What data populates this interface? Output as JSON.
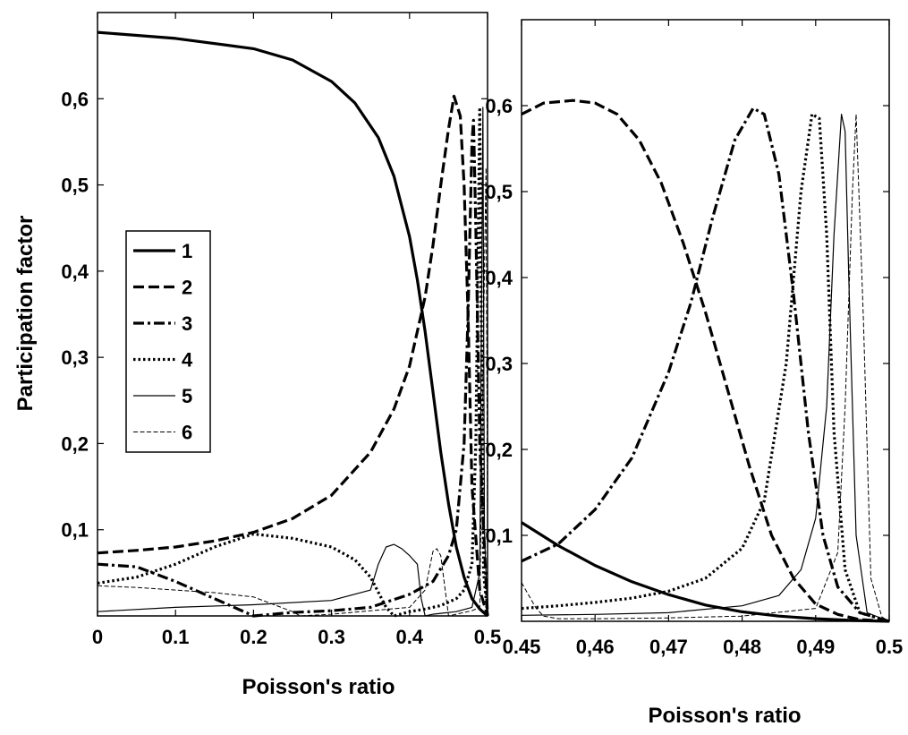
{
  "chart_data": [
    {
      "type": "line",
      "title": "",
      "xlabel": "Poisson's ratio",
      "ylabel": "Participation factor",
      "xlim": [
        0,
        0.5
      ],
      "ylim": [
        0,
        0.7
      ],
      "xticks": [
        0,
        0.1,
        0.2,
        0.3,
        0.4,
        0.5
      ],
      "xtick_labels": [
        "0",
        "0.1",
        "0.2",
        "0.3",
        "0.4",
        "0.5"
      ],
      "yticks": [
        0.1,
        0.2,
        0.3,
        0.4,
        0.5,
        0.6
      ],
      "ytick_labels": [
        "0,1",
        "0,2",
        "0,3",
        "0,4",
        "0,5",
        "0,6"
      ],
      "grid": false,
      "legend": "center-left",
      "series": [
        {
          "name": "1",
          "style": "solid-thick",
          "x": [
            0,
            0.1,
            0.2,
            0.25,
            0.3,
            0.33,
            0.36,
            0.38,
            0.4,
            0.41,
            0.42,
            0.43,
            0.44,
            0.45,
            0.46,
            0.47,
            0.48,
            0.49,
            0.5
          ],
          "y": [
            0.677,
            0.67,
            0.658,
            0.645,
            0.62,
            0.595,
            0.555,
            0.51,
            0.44,
            0.39,
            0.33,
            0.26,
            0.19,
            0.13,
            0.08,
            0.045,
            0.02,
            0.008,
            0.0
          ]
        },
        {
          "name": "2",
          "style": "dashed",
          "x": [
            0,
            0.05,
            0.1,
            0.15,
            0.2,
            0.25,
            0.3,
            0.35,
            0.38,
            0.4,
            0.42,
            0.43,
            0.44,
            0.45,
            0.457,
            0.465,
            0.47,
            0.475,
            0.48,
            0.49,
            0.5
          ],
          "y": [
            0.073,
            0.076,
            0.08,
            0.087,
            0.097,
            0.113,
            0.14,
            0.19,
            0.24,
            0.29,
            0.37,
            0.43,
            0.5,
            0.565,
            0.603,
            0.58,
            0.5,
            0.35,
            0.15,
            0.03,
            0.0
          ]
        },
        {
          "name": "3",
          "style": "dash-dot",
          "x": [
            0,
            0.05,
            0.1,
            0.15,
            0.2,
            0.25,
            0.3,
            0.35,
            0.4,
            0.43,
            0.45,
            0.46,
            0.47,
            0.475,
            0.48,
            0.482,
            0.485,
            0.49,
            0.5
          ],
          "y": [
            0.06,
            0.057,
            0.04,
            0.02,
            0.0,
            0.004,
            0.006,
            0.01,
            0.025,
            0.04,
            0.07,
            0.1,
            0.2,
            0.35,
            0.55,
            0.575,
            0.45,
            0.2,
            0.0
          ]
        },
        {
          "name": "4",
          "style": "dotted",
          "x": [
            0,
            0.05,
            0.1,
            0.15,
            0.2,
            0.25,
            0.3,
            0.33,
            0.35,
            0.37,
            0.38,
            0.4,
            0.42,
            0.44,
            0.46,
            0.47,
            0.48,
            0.485,
            0.49,
            0.492,
            0.495,
            0.5
          ],
          "y": [
            0.038,
            0.045,
            0.06,
            0.08,
            0.095,
            0.09,
            0.08,
            0.065,
            0.045,
            0.01,
            0.0,
            0.005,
            0.008,
            0.012,
            0.02,
            0.03,
            0.06,
            0.2,
            0.59,
            0.35,
            0.05,
            0.0
          ]
        },
        {
          "name": "5",
          "style": "solid-thin",
          "x": [
            0,
            0.1,
            0.2,
            0.3,
            0.35,
            0.36,
            0.37,
            0.38,
            0.39,
            0.4,
            0.41,
            0.415,
            0.42,
            0.43,
            0.44,
            0.46,
            0.48,
            0.49,
            0.494,
            0.496,
            0.5
          ],
          "y": [
            0.005,
            0.01,
            0.013,
            0.018,
            0.03,
            0.06,
            0.08,
            0.083,
            0.078,
            0.07,
            0.06,
            0.02,
            0.0,
            0.002,
            0.003,
            0.005,
            0.01,
            0.05,
            0.59,
            0.1,
            0.0
          ]
        },
        {
          "name": "6",
          "style": "dashed-thin",
          "x": [
            0,
            0.05,
            0.1,
            0.15,
            0.2,
            0.25,
            0.26,
            0.3,
            0.35,
            0.4,
            0.42,
            0.43,
            0.435,
            0.44,
            0.45,
            0.46,
            0.47,
            0.48,
            0.49,
            0.496,
            0.498,
            0.5
          ],
          "y": [
            0.035,
            0.033,
            0.03,
            0.027,
            0.022,
            0.005,
            0.0,
            0.002,
            0.006,
            0.01,
            0.03,
            0.075,
            0.078,
            0.07,
            0.0,
            0.002,
            0.004,
            0.006,
            0.01,
            0.4,
            0.52,
            0.1
          ]
        }
      ]
    },
    {
      "type": "line",
      "title": "",
      "xlabel": "Poisson's ratio",
      "ylabel": "",
      "xlim": [
        0.45,
        0.5
      ],
      "ylim": [
        0,
        0.7
      ],
      "xticks": [
        0.45,
        0.46,
        0.47,
        0.48,
        0.49,
        0.5
      ],
      "xtick_labels": [
        "0.45",
        "0,46",
        "0,47",
        "0,48",
        "0,49",
        "0.5"
      ],
      "yticks": [
        0.1,
        0.2,
        0.3,
        0.4,
        0.5,
        0.6
      ],
      "ytick_labels": [
        "0,1",
        "0,2",
        "0,3",
        "0,4",
        "0,5",
        "0,6"
      ],
      "grid": false,
      "series": [
        {
          "name": "1",
          "style": "solid-thick",
          "x": [
            0.45,
            0.455,
            0.46,
            0.465,
            0.47,
            0.475,
            0.48,
            0.485,
            0.49,
            0.495,
            0.5
          ],
          "y": [
            0.115,
            0.088,
            0.065,
            0.046,
            0.031,
            0.019,
            0.011,
            0.006,
            0.003,
            0.001,
            0.0
          ]
        },
        {
          "name": "2",
          "style": "dashed",
          "x": [
            0.45,
            0.453,
            0.457,
            0.46,
            0.463,
            0.466,
            0.469,
            0.472,
            0.475,
            0.478,
            0.481,
            0.484,
            0.487,
            0.49,
            0.493,
            0.496,
            0.5
          ],
          "y": [
            0.59,
            0.603,
            0.606,
            0.603,
            0.59,
            0.56,
            0.51,
            0.44,
            0.36,
            0.27,
            0.18,
            0.1,
            0.05,
            0.02,
            0.008,
            0.002,
            0.0
          ]
        },
        {
          "name": "3",
          "style": "dash-dot",
          "x": [
            0.45,
            0.455,
            0.46,
            0.465,
            0.47,
            0.473,
            0.476,
            0.479,
            0.4815,
            0.483,
            0.485,
            0.487,
            0.489,
            0.491,
            0.493,
            0.496,
            0.5
          ],
          "y": [
            0.07,
            0.09,
            0.13,
            0.19,
            0.29,
            0.37,
            0.47,
            0.56,
            0.597,
            0.59,
            0.52,
            0.38,
            0.22,
            0.1,
            0.04,
            0.01,
            0.0
          ]
        },
        {
          "name": "4",
          "style": "dotted",
          "x": [
            0.45,
            0.455,
            0.46,
            0.465,
            0.47,
            0.475,
            0.48,
            0.483,
            0.486,
            0.488,
            0.4895,
            0.4905,
            0.4915,
            0.4925,
            0.494,
            0.496,
            0.5
          ],
          "y": [
            0.015,
            0.018,
            0.022,
            0.027,
            0.035,
            0.05,
            0.085,
            0.14,
            0.3,
            0.5,
            0.59,
            0.585,
            0.45,
            0.22,
            0.06,
            0.01,
            0.0
          ]
        },
        {
          "name": "5",
          "style": "solid-thin",
          "x": [
            0.45,
            0.46,
            0.47,
            0.48,
            0.485,
            0.488,
            0.49,
            0.4915,
            0.4925,
            0.4935,
            0.494,
            0.4945,
            0.4955,
            0.497,
            0.5
          ],
          "y": [
            0.007,
            0.008,
            0.01,
            0.018,
            0.03,
            0.06,
            0.12,
            0.25,
            0.45,
            0.59,
            0.57,
            0.4,
            0.1,
            0.01,
            0.0
          ]
        },
        {
          "name": "6",
          "style": "dashed-thin",
          "x": [
            0.45,
            0.451,
            0.452,
            0.453,
            0.455,
            0.46,
            0.47,
            0.48,
            0.49,
            0.493,
            0.494,
            0.495,
            0.4955,
            0.4965,
            0.4975,
            0.499,
            0.5
          ],
          "y": [
            0.045,
            0.03,
            0.015,
            0.006,
            0.003,
            0.003,
            0.004,
            0.006,
            0.015,
            0.08,
            0.25,
            0.5,
            0.59,
            0.35,
            0.05,
            0.005,
            0.0
          ]
        }
      ]
    }
  ]
}
